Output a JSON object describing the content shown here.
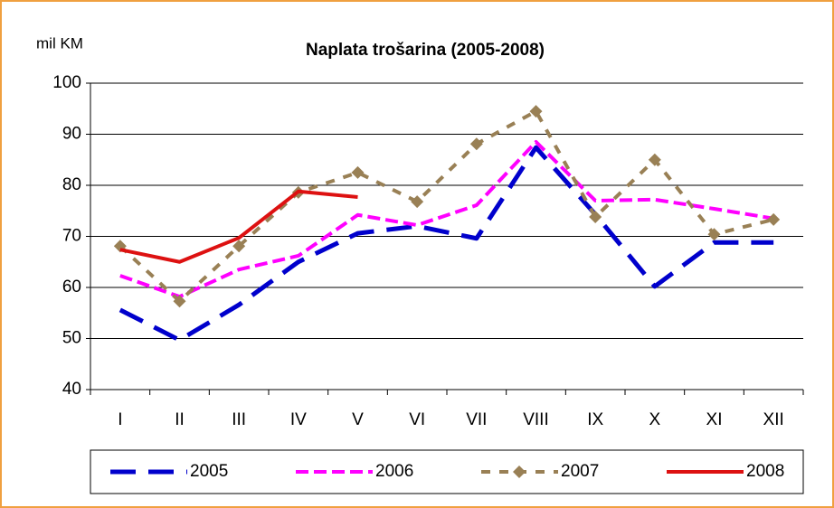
{
  "chart_data": {
    "type": "line",
    "title": "Naplata trošarina (2005-2008)",
    "y_label": "mil KM",
    "categories": [
      "I",
      "II",
      "III",
      "IV",
      "V",
      "VI",
      "VII",
      "VIII",
      "IX",
      "X",
      "XI",
      "XII"
    ],
    "series": [
      {
        "name": "2005",
        "color": "#0000cc",
        "dash": "28 14",
        "width": 5,
        "values": [
          55.6,
          49.7,
          56.6,
          65,
          70.6,
          72,
          69.6,
          87.4,
          74.3,
          60.2,
          68.8,
          68.8
        ]
      },
      {
        "name": "2006",
        "color": "#ff00ff",
        "dash": "14 6",
        "width": 4,
        "values": [
          62.3,
          58.2,
          63.5,
          66.2,
          74.2,
          72.2,
          76.1,
          88.5,
          77,
          77.2,
          75.4,
          73.5
        ]
      },
      {
        "name": "2007",
        "color": "#998055",
        "dash": "10 10",
        "width": 4,
        "marker": "diamond",
        "values": [
          68.1,
          57.3,
          68.1,
          78.6,
          82.5,
          76.8,
          88.1,
          94.5,
          73.8,
          85,
          70.4,
          73.3
        ]
      },
      {
        "name": "2008",
        "color": "#dd1111",
        "width": 4,
        "values": [
          67.4,
          65,
          69.7,
          78.8,
          77.7,
          null,
          null,
          null,
          null,
          null,
          null,
          null
        ]
      }
    ],
    "ylim": [
      40,
      100
    ],
    "yticks": [
      40,
      50,
      60,
      70,
      80,
      90,
      100
    ],
    "grid": true,
    "legend": "bottom"
  }
}
